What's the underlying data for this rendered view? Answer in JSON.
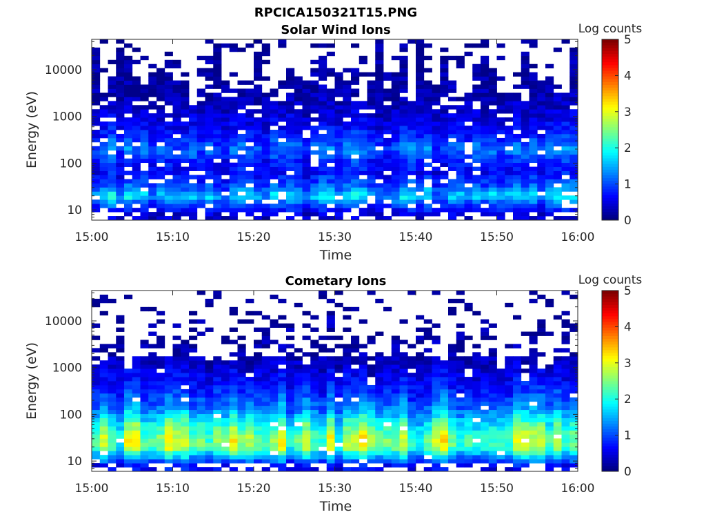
{
  "figure_title": "RPCICA150321T15.PNG",
  "chart_data": [
    {
      "type": "heatmap",
      "title": "Solar Wind Ions",
      "xlabel": "Time",
      "ylabel": "Energy (eV)",
      "x_range": [
        "15:00",
        "16:00"
      ],
      "x_ticks": [
        "15:00",
        "15:10",
        "15:20",
        "15:30",
        "15:40",
        "15:50",
        "16:00"
      ],
      "y_scale": "log",
      "y_ticks": [
        "10",
        "100",
        "1000",
        "10000"
      ],
      "colorbar": {
        "label": "Log counts",
        "range": [
          0,
          5
        ],
        "ticks": [
          "0",
          "1",
          "2",
          "3",
          "4",
          "5"
        ],
        "colormap": "jet"
      },
      "profile": {
        "log_energy_peak": 1.3,
        "peak_level": 1.6,
        "description_levels": [
          {
            "log_energy": 0.9,
            "level": 0.4
          },
          {
            "log_energy": 1.1,
            "level": 0.9
          },
          {
            "log_energy": 1.3,
            "level": 1.6
          },
          {
            "log_energy": 1.5,
            "level": 1.0
          },
          {
            "log_energy": 1.8,
            "level": 0.6
          },
          {
            "log_energy": 2.0,
            "level": 0.7
          },
          {
            "log_energy": 2.3,
            "level": 1.1
          },
          {
            "log_energy": 2.6,
            "level": 0.7
          },
          {
            "log_energy": 3.0,
            "level": 0.4
          },
          {
            "log_energy": 3.5,
            "level": 0.2
          },
          {
            "log_energy": 4.5,
            "level": 0.15
          }
        ]
      }
    },
    {
      "type": "heatmap",
      "title": "Cometary Ions",
      "xlabel": "Time",
      "ylabel": "Energy (eV)",
      "x_range": [
        "15:00",
        "16:00"
      ],
      "x_ticks": [
        "15:00",
        "15:10",
        "15:20",
        "15:30",
        "15:40",
        "15:50",
        "16:00"
      ],
      "y_scale": "log",
      "y_ticks": [
        "10",
        "100",
        "1000",
        "10000"
      ],
      "colorbar": {
        "label": "Log counts",
        "range": [
          0,
          5
        ],
        "ticks": [
          "0",
          "1",
          "2",
          "3",
          "4",
          "5"
        ],
        "colormap": "jet"
      },
      "profile": {
        "log_energy_peak": 1.4,
        "peak_level": 2.6,
        "description_levels": [
          {
            "log_energy": 0.9,
            "level": 0.6
          },
          {
            "log_energy": 1.1,
            "level": 1.5
          },
          {
            "log_energy": 1.3,
            "level": 2.5
          },
          {
            "log_energy": 1.5,
            "level": 2.5
          },
          {
            "log_energy": 1.8,
            "level": 2.0
          },
          {
            "log_energy": 2.1,
            "level": 1.3
          },
          {
            "log_energy": 2.5,
            "level": 0.8
          },
          {
            "log_energy": 3.0,
            "level": 0.4
          },
          {
            "log_energy": 3.4,
            "level": 0.2
          }
        ]
      }
    }
  ]
}
